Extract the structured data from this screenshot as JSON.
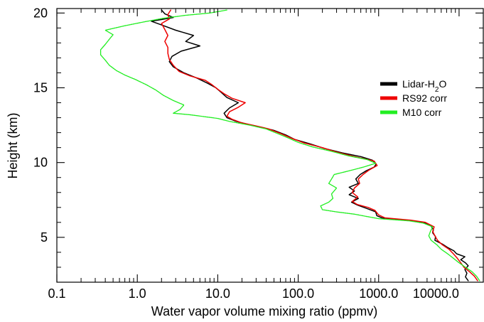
{
  "chart_data": {
    "type": "line",
    "title": "",
    "xlabel": "Water vapor volume mixing ratio (ppmv)",
    "ylabel": "Height (km)",
    "xscale": "log",
    "xlim": [
      0.1,
      20000
    ],
    "ylim": [
      2,
      20.3
    ],
    "xticks": [
      0.1,
      1,
      10,
      100,
      1000,
      10000
    ],
    "xticklabels": [
      "0.1",
      "1.0",
      "10.0",
      "100.0",
      "1000.0",
      "10000.0"
    ],
    "yticks": [
      5,
      10,
      15,
      20
    ],
    "yticklabels": [
      "5",
      "10",
      "15",
      "20"
    ],
    "grid": false,
    "legend": "right",
    "series": [
      {
        "name": "Lidar-H₂O",
        "legend_parts": {
          "base": "Lidar-H",
          "sub": "2",
          "tail": "O"
        },
        "color": "#000000",
        "points": [
          [
            13000,
            2.1
          ],
          [
            12000,
            2.35
          ],
          [
            12500,
            2.6
          ],
          [
            11800,
            2.85
          ],
          [
            13000,
            3.1
          ],
          [
            12000,
            3.3
          ],
          [
            10500,
            3.5
          ],
          [
            11800,
            3.7
          ],
          [
            9300,
            3.9
          ],
          [
            8600,
            4.1
          ],
          [
            7300,
            4.3
          ],
          [
            6200,
            4.55
          ],
          [
            5000,
            4.8
          ],
          [
            5100,
            5.05
          ],
          [
            4700,
            5.3
          ],
          [
            4800,
            5.5
          ],
          [
            4500,
            5.75
          ],
          [
            3600,
            6.0
          ],
          [
            2200,
            6.15
          ],
          [
            1100,
            6.3
          ],
          [
            950,
            6.45
          ],
          [
            920,
            6.7
          ],
          [
            700,
            6.95
          ],
          [
            550,
            7.15
          ],
          [
            460,
            7.35
          ],
          [
            560,
            7.6
          ],
          [
            430,
            7.85
          ],
          [
            500,
            8.1
          ],
          [
            430,
            8.35
          ],
          [
            560,
            8.6
          ],
          [
            520,
            8.9
          ],
          [
            590,
            9.2
          ],
          [
            700,
            9.45
          ],
          [
            880,
            9.7
          ],
          [
            930,
            9.9
          ],
          [
            840,
            10.15
          ],
          [
            600,
            10.4
          ],
          [
            350,
            10.65
          ],
          [
            210,
            10.95
          ],
          [
            140,
            11.25
          ],
          [
            90,
            11.55
          ],
          [
            70,
            11.85
          ],
          [
            50,
            12.15
          ],
          [
            36,
            12.35
          ],
          [
            24,
            12.55
          ],
          [
            17,
            12.75
          ],
          [
            13,
            13.0
          ],
          [
            12,
            13.3
          ],
          [
            14,
            13.65
          ],
          [
            18,
            14.0
          ],
          [
            13,
            14.35
          ],
          [
            11,
            14.7
          ],
          [
            9.5,
            15.0
          ],
          [
            7.5,
            15.3
          ],
          [
            5.5,
            15.65
          ],
          [
            3.8,
            16.0
          ],
          [
            2.8,
            16.4
          ],
          [
            2.5,
            16.75
          ],
          [
            2.7,
            17.1
          ],
          [
            3.5,
            17.45
          ],
          [
            6.0,
            17.8
          ],
          [
            4.0,
            18.1
          ],
          [
            5.0,
            18.5
          ],
          [
            3.0,
            18.85
          ],
          [
            2.0,
            19.2
          ],
          [
            1.5,
            19.45
          ],
          [
            2.8,
            19.7
          ],
          [
            2.2,
            19.95
          ],
          [
            2.0,
            20.2
          ]
        ]
      },
      {
        "name": "RS92 corr",
        "color": "#ee0000",
        "points": [
          [
            17000,
            2.1
          ],
          [
            15500,
            2.4
          ],
          [
            13500,
            2.7
          ],
          [
            11500,
            3.0
          ],
          [
            10500,
            3.3
          ],
          [
            9500,
            3.6
          ],
          [
            8500,
            3.9
          ],
          [
            7500,
            4.2
          ],
          [
            6200,
            4.5
          ],
          [
            5400,
            4.8
          ],
          [
            5000,
            5.1
          ],
          [
            4700,
            5.4
          ],
          [
            4900,
            5.7
          ],
          [
            3800,
            6.0
          ],
          [
            2500,
            6.15
          ],
          [
            1200,
            6.3
          ],
          [
            1000,
            6.5
          ],
          [
            900,
            6.8
          ],
          [
            740,
            7.0
          ],
          [
            540,
            7.2
          ],
          [
            470,
            7.4
          ],
          [
            550,
            7.7
          ],
          [
            470,
            8.0
          ],
          [
            500,
            8.3
          ],
          [
            580,
            8.6
          ],
          [
            560,
            8.9
          ],
          [
            640,
            9.2
          ],
          [
            760,
            9.5
          ],
          [
            960,
            9.8
          ],
          [
            880,
            10.1
          ],
          [
            500,
            10.4
          ],
          [
            300,
            10.7
          ],
          [
            200,
            11.0
          ],
          [
            120,
            11.3
          ],
          [
            85,
            11.6
          ],
          [
            60,
            11.95
          ],
          [
            43,
            12.25
          ],
          [
            30,
            12.45
          ],
          [
            20,
            12.65
          ],
          [
            15,
            12.9
          ],
          [
            13,
            13.1
          ],
          [
            14,
            13.4
          ],
          [
            18,
            13.7
          ],
          [
            22,
            14.0
          ],
          [
            15,
            14.3
          ],
          [
            12,
            14.6
          ],
          [
            10,
            14.9
          ],
          [
            8.5,
            15.2
          ],
          [
            7.0,
            15.5
          ],
          [
            4.5,
            15.8
          ],
          [
            3.3,
            16.1
          ],
          [
            2.8,
            16.5
          ],
          [
            2.5,
            16.9
          ],
          [
            2.4,
            17.3
          ],
          [
            2.4,
            17.7
          ],
          [
            2.2,
            18.1
          ],
          [
            2.4,
            18.5
          ],
          [
            2.2,
            18.9
          ],
          [
            2.0,
            19.3
          ],
          [
            2.5,
            19.6
          ],
          [
            2.4,
            19.9
          ],
          [
            2.6,
            20.2
          ]
        ]
      },
      {
        "name": "M10 corr",
        "color": "#22ee22",
        "points": [
          [
            18000,
            2.1
          ],
          [
            16500,
            2.4
          ],
          [
            14500,
            2.7
          ],
          [
            12000,
            3.0
          ],
          [
            10000,
            3.3
          ],
          [
            8500,
            3.6
          ],
          [
            7200,
            3.9
          ],
          [
            6000,
            4.2
          ],
          [
            5300,
            4.5
          ],
          [
            4500,
            4.8
          ],
          [
            4200,
            5.1
          ],
          [
            4400,
            5.4
          ],
          [
            4700,
            5.7
          ],
          [
            3600,
            5.95
          ],
          [
            2400,
            6.1
          ],
          [
            1000,
            6.25
          ],
          [
            700,
            6.4
          ],
          [
            500,
            6.55
          ],
          [
            300,
            6.7
          ],
          [
            200,
            6.85
          ],
          [
            190,
            7.1
          ],
          [
            240,
            7.35
          ],
          [
            270,
            7.6
          ],
          [
            260,
            7.9
          ],
          [
            300,
            8.3
          ],
          [
            240,
            8.6
          ],
          [
            260,
            8.9
          ],
          [
            280,
            9.2
          ],
          [
            430,
            9.45
          ],
          [
            650,
            9.7
          ],
          [
            920,
            9.95
          ],
          [
            720,
            10.2
          ],
          [
            420,
            10.45
          ],
          [
            260,
            10.75
          ],
          [
            150,
            11.05
          ],
          [
            100,
            11.35
          ],
          [
            75,
            11.65
          ],
          [
            55,
            11.95
          ],
          [
            40,
            12.25
          ],
          [
            25,
            12.5
          ],
          [
            14,
            12.75
          ],
          [
            10,
            12.95
          ],
          [
            4.5,
            13.2
          ],
          [
            2.8,
            13.3
          ],
          [
            3.4,
            13.55
          ],
          [
            3.8,
            13.85
          ],
          [
            2.8,
            14.15
          ],
          [
            2.1,
            14.5
          ],
          [
            1.7,
            14.85
          ],
          [
            1.3,
            15.2
          ],
          [
            0.95,
            15.55
          ],
          [
            0.7,
            15.85
          ],
          [
            0.55,
            16.15
          ],
          [
            0.45,
            16.5
          ],
          [
            0.4,
            16.85
          ],
          [
            0.35,
            17.2
          ],
          [
            0.35,
            17.55
          ],
          [
            0.4,
            17.9
          ],
          [
            0.45,
            18.25
          ],
          [
            0.5,
            18.55
          ],
          [
            0.4,
            18.85
          ],
          [
            0.7,
            19.15
          ],
          [
            1.2,
            19.4
          ],
          [
            2.1,
            19.65
          ],
          [
            4.0,
            19.85
          ],
          [
            8.0,
            20.0
          ],
          [
            13.0,
            20.2
          ]
        ]
      }
    ]
  }
}
